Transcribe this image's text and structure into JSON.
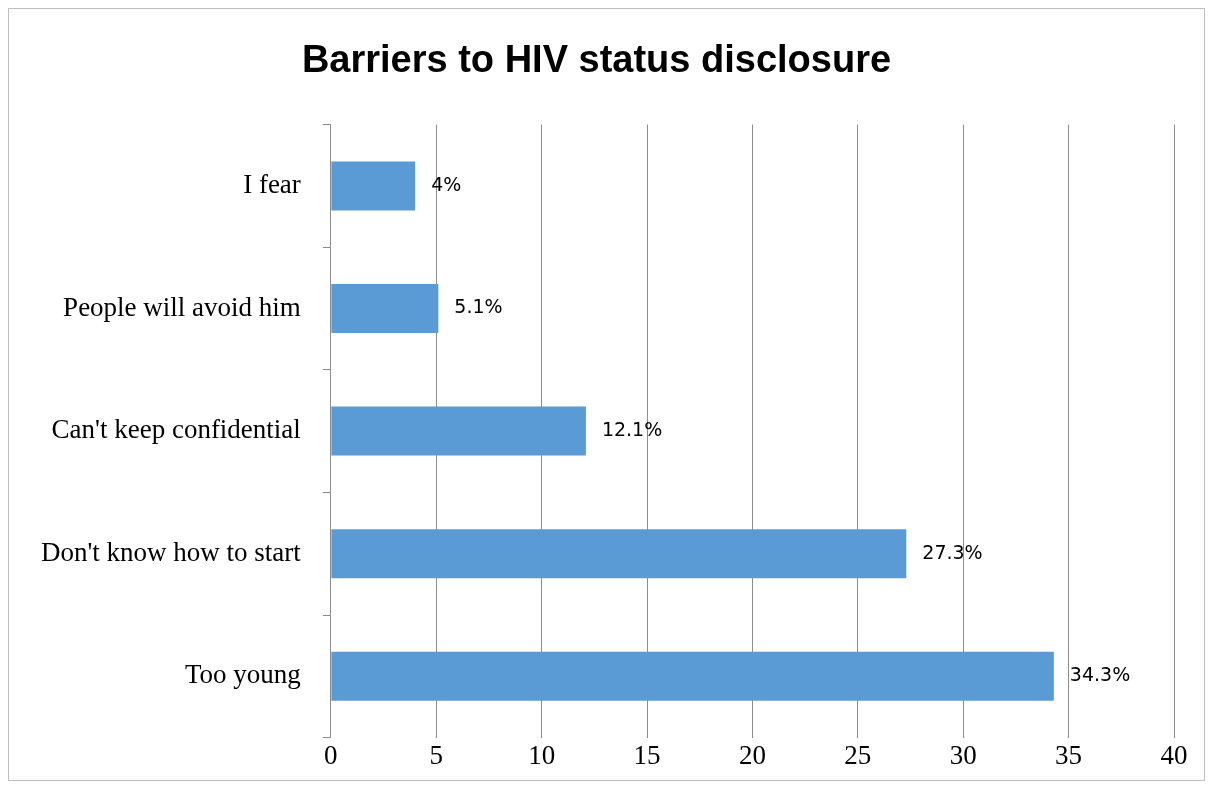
{
  "chart_data": {
    "type": "bar",
    "orientation": "horizontal",
    "title": "Barriers to HIV status disclosure",
    "categories": [
      "I fear",
      "People will avoid him",
      "Can't keep confidential",
      "Don't know how to start",
      "Too young"
    ],
    "values": [
      4,
      5.1,
      12.1,
      27.3,
      34.3
    ],
    "value_labels": [
      "4%",
      "5.1%",
      "12.1%",
      "27.3%",
      "34.3%"
    ],
    "color": "#5b9bd5",
    "xlim": [
      0,
      40
    ],
    "xticks": [
      0,
      5,
      10,
      15,
      20,
      25,
      30,
      35,
      40
    ],
    "grid": "x",
    "legend": false
  }
}
